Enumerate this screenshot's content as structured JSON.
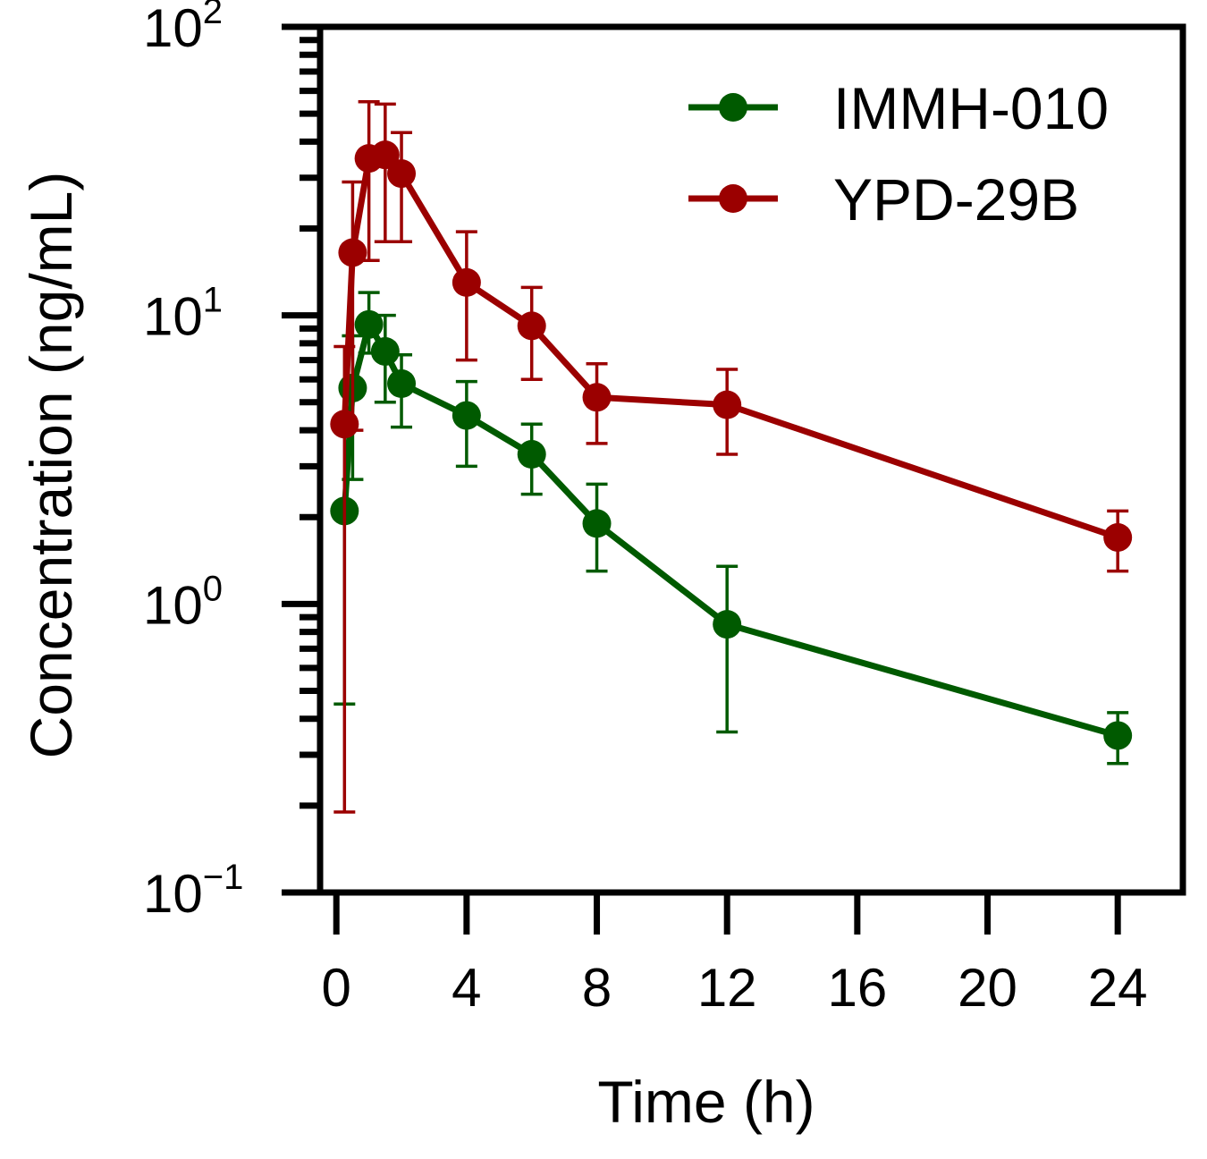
{
  "chart_data": {
    "type": "line",
    "xlabel": "Time (h)",
    "ylabel": "Concentration (ng/mL)",
    "xlim": [
      -0.5,
      26
    ],
    "ylim": [
      0.1,
      100
    ],
    "y_scale": "log",
    "x_ticks": [
      {
        "value": 0,
        "label": "0"
      },
      {
        "value": 4,
        "label": "4"
      },
      {
        "value": 8,
        "label": "8"
      },
      {
        "value": 12,
        "label": "12"
      },
      {
        "value": 16,
        "label": "16"
      },
      {
        "value": 20,
        "label": "20"
      },
      {
        "value": 24,
        "label": "24"
      }
    ],
    "y_ticks": [
      {
        "value": 0.1,
        "base": "10",
        "exp": "−1"
      },
      {
        "value": 1,
        "base": "10",
        "exp": "0"
      },
      {
        "value": 10,
        "base": "10",
        "exp": "1"
      },
      {
        "value": 100,
        "base": "10",
        "exp": "2"
      }
    ],
    "legend_position": "top-right",
    "grid": false,
    "series": [
      {
        "name": "IMMH-010",
        "color": "#005a00",
        "x": [
          0.25,
          0.5,
          1,
          1.5,
          2,
          4,
          6,
          8,
          12,
          24
        ],
        "y": [
          2.1,
          5.6,
          9.3,
          7.5,
          5.8,
          4.5,
          3.3,
          1.9,
          0.85,
          0.35
        ],
        "err_low": [
          0.45,
          2.7,
          7.4,
          5.0,
          4.1,
          3.0,
          2.4,
          1.3,
          0.36,
          0.28
        ],
        "err_high": [
          0,
          8.5,
          12.0,
          10.0,
          7.3,
          5.9,
          4.2,
          2.6,
          1.35,
          0.42
        ]
      },
      {
        "name": "YPD-29B",
        "color": "#9b0000",
        "x": [
          0.25,
          0.5,
          1,
          1.5,
          2,
          4,
          6,
          8,
          12,
          24
        ],
        "y": [
          4.2,
          16.5,
          35,
          36,
          31,
          13,
          9.2,
          5.2,
          4.9,
          1.7
        ],
        "err_low": [
          0.19,
          4.0,
          15.5,
          18.0,
          18.0,
          7.0,
          6.0,
          3.6,
          3.3,
          1.3
        ],
        "err_high": [
          7.8,
          29.0,
          55.0,
          54.0,
          43.0,
          19.5,
          12.5,
          6.8,
          6.5,
          2.1
        ]
      }
    ]
  }
}
